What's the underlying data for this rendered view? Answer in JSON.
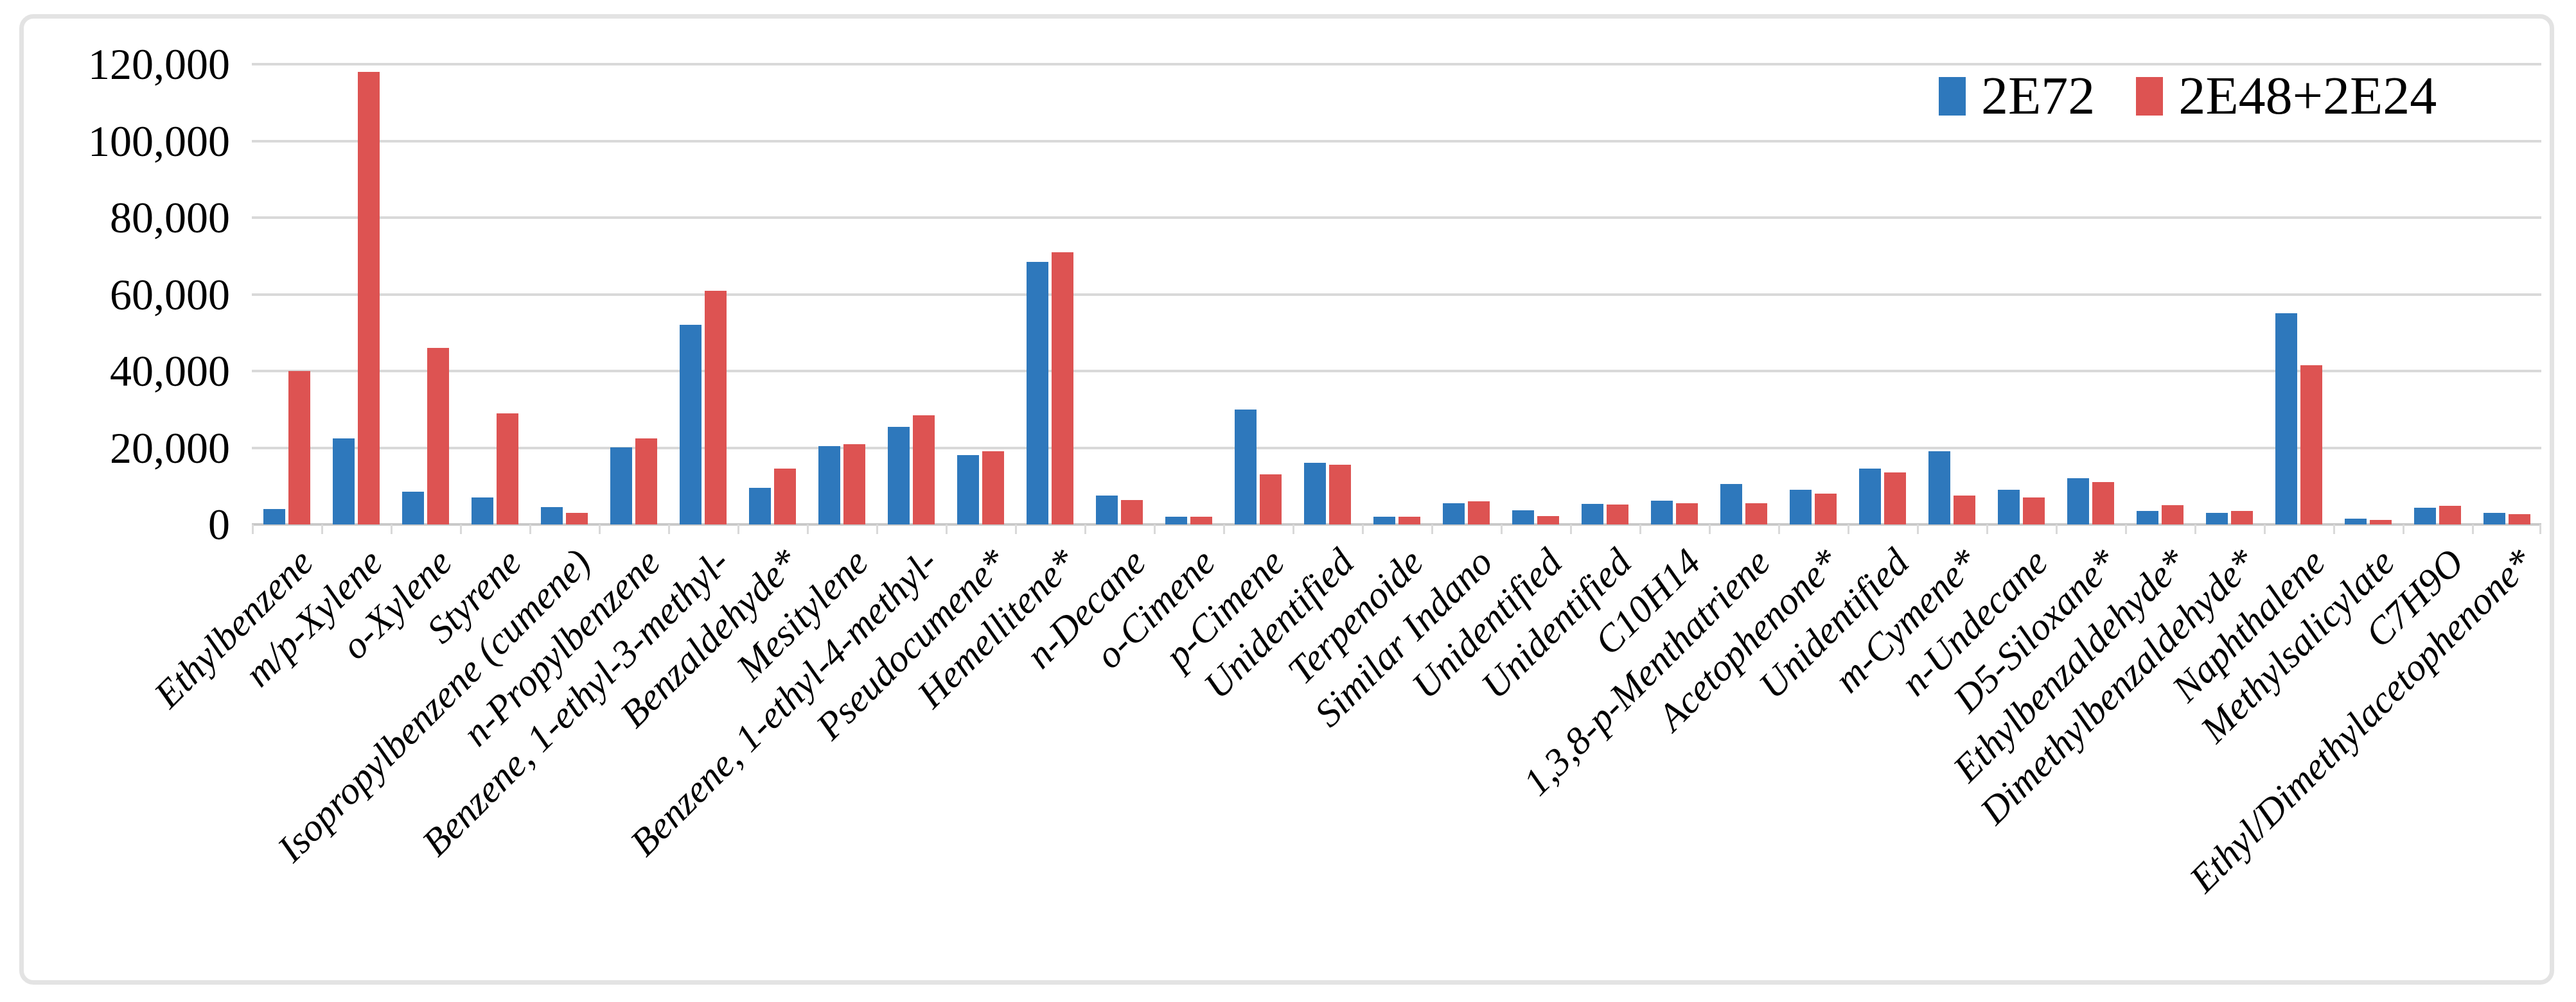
{
  "chart_data": {
    "type": "bar",
    "title": "",
    "xlabel": "",
    "ylabel": "",
    "ylim": [
      0,
      120000
    ],
    "ytick_step": 20000,
    "ytick_labels": [
      "0",
      "20,000",
      "40,000",
      "60,000",
      "80,000",
      "100,000",
      "120,000"
    ],
    "grid": "horizontal",
    "legend_position": "top-right",
    "x_label_rotation_deg": 45,
    "categories": [
      "Ethylbenzene",
      "m/p-Xylene",
      "o-Xylene",
      "Styrene",
      "Isopropylbenzene (cumene)",
      "n-Propylbenzene",
      "Benzene, 1-ethyl-3-methyl-",
      "Benzaldehyde*",
      "Mesitylene",
      "Benzene, 1-ethyl-4-methyl-",
      "Pseudocumene*",
      "Hemellitene*",
      "n-Decane",
      "o-Cimene",
      "p-Cimene",
      "Unidentified",
      "Terpenoide",
      "Similar Indano",
      "Unidentified",
      "Unidentified",
      "C10H14",
      "1,3,8-p-Menthatriene",
      "Acetophenone*",
      "Unidentified",
      "m-Cymene*",
      "n-Undecane",
      "D5-Siloxane*",
      "Ethylbenzaldehyde*",
      "Dimethylbenzaldehyde*",
      "Naphthalene",
      "Methylsalicylate",
      "C7H9O",
      "Ethyl/Dimethylacetophenone*"
    ],
    "series": [
      {
        "name": "2E72",
        "color": "#2e78bc",
        "values": [
          4000,
          22500,
          8500,
          7000,
          4500,
          20000,
          52000,
          9500,
          20500,
          25500,
          18000,
          68500,
          7500,
          2000,
          30000,
          16000,
          2000,
          5500,
          3700,
          5400,
          6200,
          10500,
          9000,
          14500,
          19000,
          9000,
          12000,
          3500,
          3000,
          55000,
          1500,
          4300,
          3000
        ]
      },
      {
        "name": "2E48+2E24",
        "color": "#dd5352",
        "values": [
          40000,
          118000,
          46000,
          29000,
          3000,
          22500,
          61000,
          14500,
          21000,
          28500,
          19000,
          71000,
          6300,
          2000,
          13000,
          15500,
          2000,
          6000,
          2200,
          5200,
          5500,
          5500,
          8000,
          13500,
          7500,
          7000,
          11000,
          5000,
          3500,
          41500,
          1200,
          4800,
          2700
        ]
      }
    ],
    "colors": {
      "gridline": "#d9d9d9",
      "axis_line": "#c9c9c9",
      "frame_border": "#e3e3e3",
      "text": "#000000",
      "background": "#ffffff"
    }
  }
}
